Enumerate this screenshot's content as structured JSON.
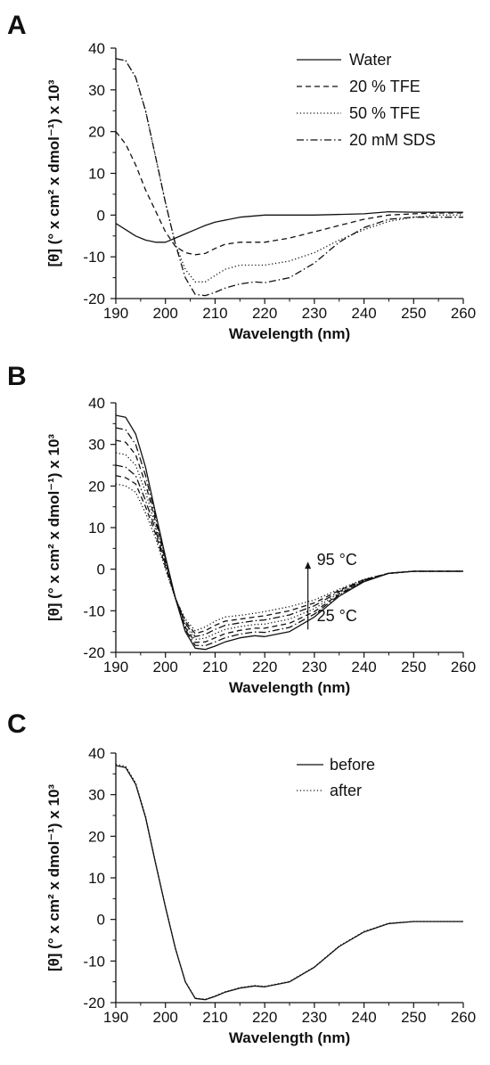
{
  "chart_data": [
    {
      "type": "line",
      "panel_label": "A",
      "xlabel": "Wavelength (nm)",
      "ylabel": "[θ] (° x cm² x dmol⁻¹) x 10³",
      "xlim": [
        190,
        260
      ],
      "ylim": [
        -20,
        40
      ],
      "xticks": [
        190,
        200,
        210,
        220,
        230,
        240,
        250,
        260
      ],
      "yticks": [
        -20,
        -10,
        0,
        10,
        20,
        30,
        40
      ],
      "grid": false,
      "legend_position": "top-right",
      "series": [
        {
          "name": "Water",
          "style": "solid",
          "x": [
            190,
            192,
            194,
            196,
            198,
            200,
            202,
            204,
            206,
            208,
            210,
            215,
            220,
            230,
            240,
            245,
            250,
            260
          ],
          "y": [
            -2,
            -3.5,
            -5,
            -6,
            -6.5,
            -6.5,
            -5.5,
            -4.5,
            -3.5,
            -2.5,
            -1.7,
            -0.5,
            0,
            0,
            0.3,
            0.8,
            0.7,
            0.7
          ]
        },
        {
          "name": "20 % TFE",
          "style": "dashed",
          "x": [
            190,
            192,
            194,
            196,
            198,
            200,
            202,
            204,
            206,
            208,
            210,
            212,
            215,
            220,
            225,
            230,
            235,
            240,
            245,
            250,
            255,
            260
          ],
          "y": [
            20,
            17,
            12,
            6,
            1,
            -4,
            -7.5,
            -9,
            -9.5,
            -9.2,
            -8,
            -7,
            -6.5,
            -6.5,
            -5.5,
            -4,
            -2.5,
            -1,
            0,
            0.3,
            0.5,
            0.5
          ]
        },
        {
          "name": "50 % TFE",
          "style": "dotted",
          "x": [
            190,
            192,
            194,
            196,
            198,
            200,
            202,
            204,
            206,
            208,
            210,
            212,
            215,
            220,
            225,
            230,
            235,
            240,
            245,
            250,
            255,
            260
          ],
          "y": [
            37.5,
            37,
            33,
            25,
            14,
            3,
            -7,
            -13,
            -16,
            -16,
            -14.5,
            -13,
            -12,
            -12,
            -11,
            -9,
            -6,
            -3.5,
            -1.5,
            -0.5,
            0,
            0
          ]
        },
        {
          "name": "20 mM SDS",
          "style": "dashdot",
          "x": [
            190,
            192,
            194,
            196,
            198,
            200,
            202,
            204,
            206,
            208,
            210,
            212,
            215,
            218,
            220,
            225,
            230,
            235,
            240,
            245,
            250,
            255,
            260
          ],
          "y": [
            37.5,
            37,
            33,
            25,
            14,
            3,
            -7,
            -15,
            -19,
            -19.3,
            -18.5,
            -17.5,
            -16.5,
            -16,
            -16.2,
            -15,
            -11.5,
            -6.5,
            -3,
            -1,
            -0.5,
            -0.5,
            -0.5
          ]
        }
      ]
    },
    {
      "type": "line",
      "panel_label": "B",
      "xlabel": "Wavelength (nm)",
      "ylabel": "[θ] (° x cm² x dmol⁻¹) x 10³",
      "xlim": [
        190,
        260
      ],
      "ylim": [
        -20,
        40
      ],
      "xticks": [
        190,
        200,
        210,
        220,
        230,
        240,
        250,
        260
      ],
      "yticks": [
        -20,
        -10,
        0,
        10,
        20,
        30,
        40
      ],
      "grid": false,
      "annotations": [
        {
          "text": "95 °C",
          "x": 230.5,
          "y": 1
        },
        {
          "text": "25 °C",
          "x": 230.5,
          "y": -12.5
        }
      ],
      "arrow": {
        "x": 228.7,
        "y_from": -14.5,
        "y_to": 1.8
      },
      "series": [
        {
          "style": "solid",
          "x": [
            190,
            192,
            194,
            196,
            198,
            200,
            202,
            204,
            206,
            208,
            210,
            212,
            215,
            218,
            220,
            225,
            230,
            235,
            240,
            245,
            250,
            255,
            260
          ],
          "y": [
            37,
            36.5,
            32.5,
            24.5,
            13.5,
            3,
            -7,
            -15,
            -19,
            -19.3,
            -18.5,
            -17.5,
            -16.5,
            -16,
            -16.2,
            -15,
            -11.5,
            -6.5,
            -3,
            -1,
            -0.5,
            -0.5,
            -0.5
          ]
        },
        {
          "style": "dashdot",
          "x": [
            190,
            192,
            194,
            196,
            198,
            200,
            202,
            204,
            206,
            208,
            210,
            212,
            215,
            218,
            220,
            225,
            230,
            235,
            240,
            245,
            250,
            255,
            260
          ],
          "y": [
            34,
            33.5,
            30,
            22.5,
            12.5,
            2.5,
            -7,
            -14.5,
            -18.3,
            -18.4,
            -17.5,
            -16.5,
            -15.6,
            -15.1,
            -15.2,
            -14,
            -10.8,
            -6.2,
            -2.9,
            -1,
            -0.5,
            -0.5,
            -0.5
          ]
        },
        {
          "style": "dashed",
          "x": [
            190,
            192,
            194,
            196,
            198,
            200,
            202,
            204,
            206,
            208,
            210,
            212,
            215,
            218,
            220,
            225,
            230,
            235,
            240,
            245,
            250,
            255,
            260
          ],
          "y": [
            31,
            30.5,
            27.5,
            20.5,
            11.5,
            2,
            -7,
            -14,
            -17.6,
            -17.5,
            -16.5,
            -15.5,
            -14.7,
            -14.2,
            -14.2,
            -13,
            -10.2,
            -6,
            -2.8,
            -1,
            -0.5,
            -0.5,
            -0.5
          ]
        },
        {
          "style": "dotted",
          "x": [
            190,
            192,
            194,
            196,
            198,
            200,
            202,
            204,
            206,
            208,
            210,
            212,
            215,
            218,
            220,
            225,
            230,
            235,
            240,
            245,
            250,
            255,
            260
          ],
          "y": [
            28,
            27.5,
            25,
            18.5,
            10.5,
            1.5,
            -7,
            -13.5,
            -16.9,
            -16.6,
            -15.5,
            -14.5,
            -13.8,
            -13.3,
            -13.2,
            -12,
            -9.5,
            -5.7,
            -2.7,
            -1,
            -0.5,
            -0.5,
            -0.5
          ]
        },
        {
          "style": "dashdot",
          "x": [
            190,
            192,
            194,
            196,
            198,
            200,
            202,
            204,
            206,
            208,
            210,
            212,
            215,
            218,
            220,
            225,
            230,
            235,
            240,
            245,
            250,
            255,
            260
          ],
          "y": [
            25,
            24.5,
            22.5,
            16.5,
            9.5,
            1,
            -7,
            -13,
            -16.2,
            -15.7,
            -14.5,
            -13.5,
            -12.9,
            -12.4,
            -12.2,
            -11,
            -8.8,
            -5.4,
            -2.6,
            -1,
            -0.5,
            -0.5,
            -0.5
          ]
        },
        {
          "style": "dashed",
          "x": [
            190,
            192,
            194,
            196,
            198,
            200,
            202,
            204,
            206,
            208,
            210,
            212,
            215,
            218,
            220,
            225,
            230,
            235,
            240,
            245,
            250,
            255,
            260
          ],
          "y": [
            22.5,
            22,
            20.5,
            15,
            8.5,
            0.5,
            -7,
            -12.5,
            -15.5,
            -14.8,
            -13.5,
            -12.5,
            -12,
            -11.5,
            -11.2,
            -10,
            -8.1,
            -5.1,
            -2.5,
            -1,
            -0.5,
            -0.5,
            -0.5
          ]
        },
        {
          "style": "dotted",
          "x": [
            190,
            192,
            194,
            196,
            198,
            200,
            202,
            204,
            206,
            208,
            210,
            212,
            215,
            218,
            220,
            225,
            230,
            235,
            240,
            245,
            250,
            255,
            260
          ],
          "y": [
            20.5,
            20,
            18.5,
            13.5,
            7.5,
            0,
            -7,
            -12,
            -14.8,
            -13.9,
            -12.5,
            -11.5,
            -11.1,
            -10.6,
            -10.2,
            -9,
            -7.4,
            -4.8,
            -2.4,
            -1,
            -0.5,
            -0.5,
            -0.5
          ]
        }
      ]
    },
    {
      "type": "line",
      "panel_label": "C",
      "xlabel": "Wavelength (nm)",
      "ylabel": "[θ] (° x cm² x dmol⁻¹) x 10³",
      "xlim": [
        190,
        260
      ],
      "ylim": [
        -20,
        40
      ],
      "xticks": [
        190,
        200,
        210,
        220,
        230,
        240,
        250,
        260
      ],
      "yticks": [
        -20,
        -10,
        0,
        10,
        20,
        30,
        40
      ],
      "grid": false,
      "legend_position": "top-right",
      "series": [
        {
          "name": "before",
          "style": "solid",
          "x": [
            190,
            192,
            194,
            196,
            198,
            200,
            202,
            204,
            206,
            208,
            210,
            212,
            215,
            218,
            220,
            225,
            230,
            235,
            240,
            245,
            250,
            255,
            260
          ],
          "y": [
            37,
            36.5,
            32.5,
            24.5,
            13.5,
            3,
            -7,
            -15,
            -19,
            -19.3,
            -18.5,
            -17.5,
            -16.5,
            -16,
            -16.2,
            -15,
            -11.5,
            -6.5,
            -3,
            -1,
            -0.5,
            -0.5,
            -0.5
          ]
        },
        {
          "name": "after",
          "style": "dotted",
          "x": [
            190,
            192,
            194,
            196,
            198,
            200,
            202,
            204,
            206,
            208,
            210,
            212,
            215,
            218,
            220,
            225,
            230,
            235,
            240,
            245,
            250,
            255,
            260
          ],
          "y": [
            37.3,
            36.8,
            32.8,
            24.8,
            13.7,
            3.1,
            -6.9,
            -14.9,
            -18.9,
            -19.2,
            -18.4,
            -17.4,
            -16.4,
            -15.9,
            -16.1,
            -14.9,
            -11.4,
            -6.4,
            -2.9,
            -0.9,
            -0.5,
            -0.5,
            -0.5
          ]
        }
      ]
    }
  ]
}
